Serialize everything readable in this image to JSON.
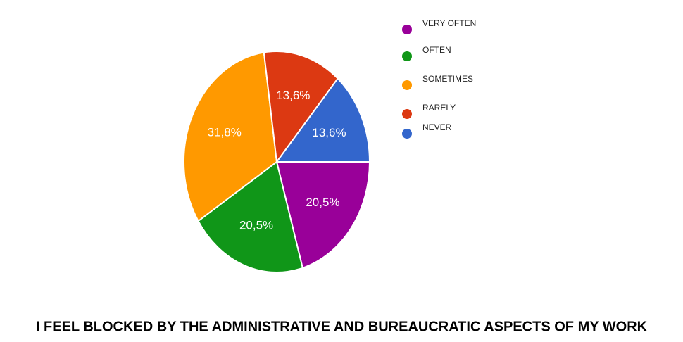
{
  "chart_data": {
    "type": "pie",
    "title": "I FEEL BLOCKED BY THE ADMINISTRATIVE AND BUREAUCRATIC ASPECTS OF MY WORK",
    "categories": [
      "VERY OFTEN",
      "OFTEN",
      "SOMETIMES",
      "RARELY",
      "NEVER"
    ],
    "values": [
      20.5,
      20.5,
      31.8,
      13.6,
      13.6
    ],
    "value_labels": [
      "20,5%",
      "20,5%",
      "31,8%",
      "13,6%",
      "13,6%"
    ],
    "colors": [
      "#990099",
      "#109618",
      "#ff9900",
      "#dc3912",
      "#3366cc"
    ]
  }
}
